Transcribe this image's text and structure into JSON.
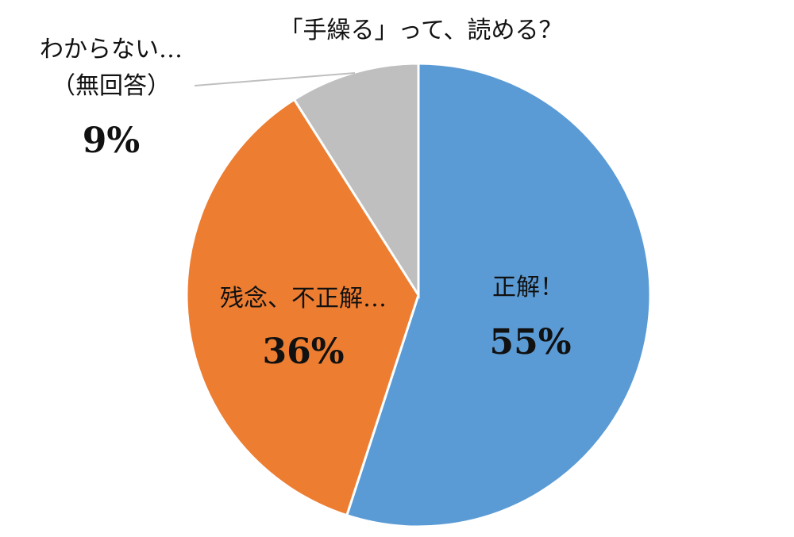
{
  "chart_data": {
    "type": "pie",
    "title": "「手繰る」って、読める？",
    "slices": [
      {
        "label": "正解！",
        "value": 55,
        "value_label": "55%",
        "color": "#5b9bd5"
      },
      {
        "label": "残念、不正解…",
        "value": 36,
        "value_label": "36%",
        "color": "#ed7d31"
      },
      {
        "label": "わからない…",
        "label_line2": "（無回答）",
        "value": 9,
        "value_label": "9%",
        "color": "#bfbfbf"
      }
    ],
    "slice_border_color": "#ffffff",
    "leader_line_color": "#bfbfbf",
    "legend": "none"
  }
}
